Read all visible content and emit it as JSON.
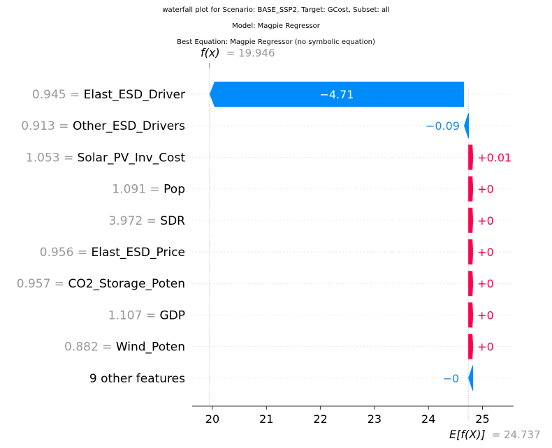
{
  "titles": {
    "line1": "waterfall plot for Scenario: BASE_SSP2, Target: GCost, Subset: all",
    "line2": "Model: Magpie Regressor",
    "line3": "Best Equation: Magpie Regressor (no symbolic equation)"
  },
  "colors": {
    "positive": "#ff0051",
    "negative": "#008bfb",
    "negative_label": "#1e88e5",
    "feature_value": "#999999",
    "grid": "#e6e6e6"
  },
  "chart_data": {
    "type": "waterfall",
    "fx_label": "f(x)",
    "fx_value": "= 19.946",
    "ex_label": "E[f(X)]",
    "ex_value": "= 24.737",
    "base_value": 24.737,
    "final_value": 19.946,
    "xlim": [
      19.6,
      25.55
    ],
    "xticks": [
      "20",
      "21",
      "22",
      "23",
      "24",
      "25"
    ],
    "xtick_values": [
      20,
      21,
      22,
      23,
      24,
      25
    ],
    "features": [
      {
        "value": "0.945 =",
        "name": "Elast_ESD_Driver",
        "shap": -4.71,
        "label": "−4.71",
        "label_inside": true
      },
      {
        "value": "0.913 =",
        "name": "Other_ESD_Drivers",
        "shap": -0.09,
        "label": "−0.09",
        "label_inside": false
      },
      {
        "value": "1.053 =",
        "name": "Solar_PV_Inv_Cost",
        "shap": 0.01,
        "label": "+0.01",
        "label_inside": false
      },
      {
        "value": "1.091 =",
        "name": "Pop",
        "shap": 0.0001,
        "label": "+0",
        "label_inside": false
      },
      {
        "value": "3.972 =",
        "name": "SDR",
        "shap": 0.0001,
        "label": "+0",
        "label_inside": false
      },
      {
        "value": "0.956 =",
        "name": "Elast_ESD_Price",
        "shap": 0.0001,
        "label": "+0",
        "label_inside": false
      },
      {
        "value": "0.957 =",
        "name": "CO2_Storage_Poten",
        "shap": 0.0001,
        "label": "+0",
        "label_inside": false
      },
      {
        "value": "1.107 =",
        "name": "GDP",
        "shap": 0.0001,
        "label": "+0",
        "label_inside": false
      },
      {
        "value": "0.882 =",
        "name": "Wind_Poten",
        "shap": 0.0001,
        "label": "+0",
        "label_inside": false
      },
      {
        "value": "",
        "name": "9 other features",
        "shap": -0.0001,
        "label": "−0",
        "label_inside": false
      }
    ]
  }
}
